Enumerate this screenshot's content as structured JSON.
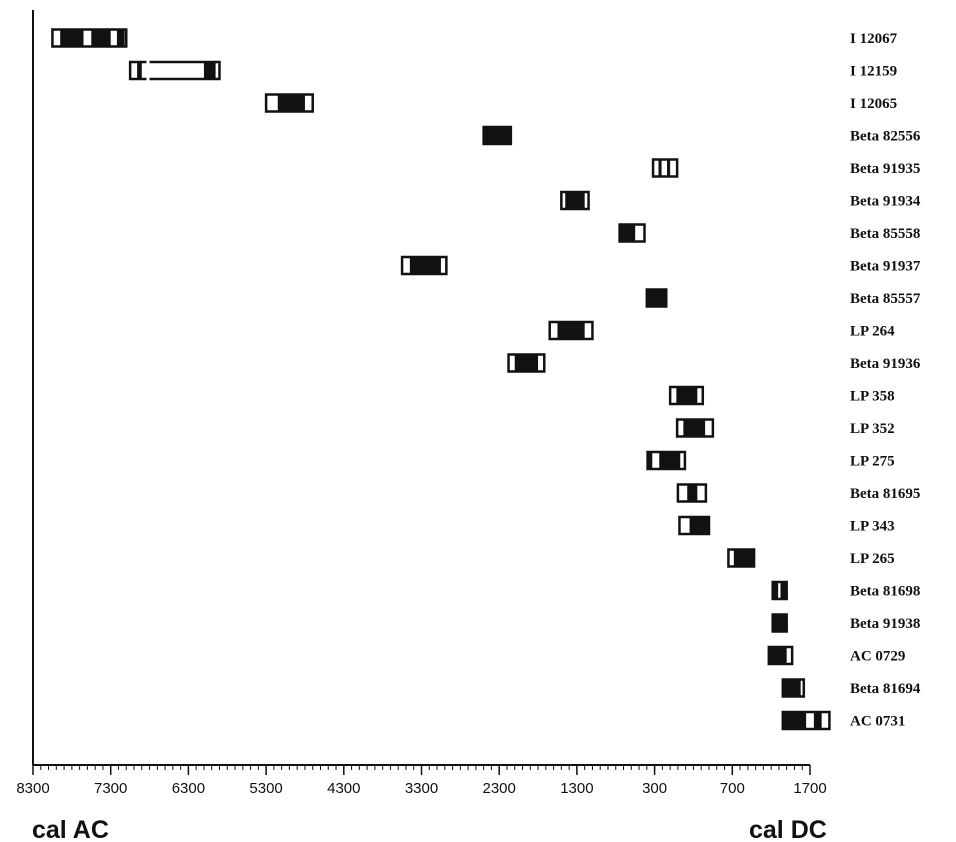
{
  "chart_data": {
    "type": "range-bar",
    "xlabel_left": "cal AC",
    "xlabel_right": "cal DC",
    "axis": {
      "xlim": [
        -8300,
        1700
      ],
      "major_ticks": [
        -8300,
        -7300,
        -6300,
        -5300,
        -4300,
        -3300,
        -2300,
        -1300,
        -300,
        700,
        1700
      ],
      "tick_labels": [
        "8300",
        "7300",
        "6300",
        "5300",
        "4300",
        "3300",
        "2300",
        "1300",
        "300",
        "700",
        "1700"
      ],
      "minor_step": 100
    },
    "samples": [
      {
        "label": "I 12067",
        "start": -8050,
        "end": -7100,
        "dark": [
          [
            -7950,
            -7650
          ],
          [
            -7550,
            -7300
          ],
          [
            -7220,
            -7120
          ]
        ]
      },
      {
        "label": "I 12159",
        "start": -7050,
        "end": -5900,
        "dark": [
          [
            -6960,
            -6900
          ],
          [
            -6100,
            -5950
          ]
        ],
        "gap": [
          [
            -6840,
            -6800
          ]
        ]
      },
      {
        "label": "I 12065",
        "start": -5300,
        "end": -4700,
        "dark": [
          [
            -5150,
            -4800
          ]
        ]
      },
      {
        "label": "Beta 82556",
        "start": -2500,
        "end": -2150,
        "dark": [
          [
            -2500,
            -2150
          ]
        ]
      },
      {
        "label": "Beta 91935",
        "start": -320,
        "end": -10,
        "dark": [
          [
            -250,
            -210
          ],
          [
            -140,
            -100
          ]
        ]
      },
      {
        "label": "Beta 91934",
        "start": -1500,
        "end": -1150,
        "dark": [
          [
            -1450,
            -1200
          ]
        ]
      },
      {
        "label": "Beta 85558",
        "start": -750,
        "end": -430,
        "dark": [
          [
            -750,
            -550
          ]
        ]
      },
      {
        "label": "Beta 91937",
        "start": -3550,
        "end": -2980,
        "dark": [
          [
            -3450,
            -3050
          ]
        ]
      },
      {
        "label": "Beta 85557",
        "start": -400,
        "end": -150,
        "dark": [
          [
            -400,
            -150
          ]
        ]
      },
      {
        "label": "LP 264",
        "start": -1650,
        "end": -1100,
        "dark": [
          [
            -1550,
            -1200
          ]
        ]
      },
      {
        "label": "Beta 91936",
        "start": -2180,
        "end": -1720,
        "dark": [
          [
            -2100,
            -1800
          ]
        ]
      },
      {
        "label": "LP 358",
        "start": -100,
        "end": 320,
        "dark": [
          [
            -20,
            250
          ]
        ]
      },
      {
        "label": "LP 352",
        "start": -10,
        "end": 450,
        "dark": [
          [
            70,
            350
          ]
        ]
      },
      {
        "label": "LP 275",
        "start": -390,
        "end": 90,
        "dark": [
          [
            -390,
            -330
          ],
          [
            -240,
            30
          ]
        ]
      },
      {
        "label": "Beta 81695",
        "start": 0,
        "end": 360,
        "dark": [
          [
            120,
            250
          ]
        ]
      },
      {
        "label": "LP 343",
        "start": 20,
        "end": 400,
        "dark": [
          [
            150,
            400
          ]
        ]
      },
      {
        "label": "LP 265",
        "start": 650,
        "end": 980,
        "dark": [
          [
            720,
            980
          ]
        ]
      },
      {
        "label": "Beta 81698",
        "start": 1220,
        "end": 1400,
        "dark": [
          [
            1220,
            1290
          ],
          [
            1320,
            1400
          ]
        ]
      },
      {
        "label": "Beta 91938",
        "start": 1220,
        "end": 1400,
        "dark": [
          [
            1220,
            1400
          ]
        ]
      },
      {
        "label": "AC 0729",
        "start": 1170,
        "end": 1470,
        "dark": [
          [
            1170,
            1400
          ]
        ]
      },
      {
        "label": "Beta 81694",
        "start": 1350,
        "end": 1620,
        "dark": [
          [
            1350,
            1580
          ]
        ]
      },
      {
        "label": "AC 0731",
        "start": 1350,
        "end": 1950,
        "dark": [
          [
            1350,
            1650
          ],
          [
            1750,
            1850
          ]
        ]
      }
    ]
  }
}
